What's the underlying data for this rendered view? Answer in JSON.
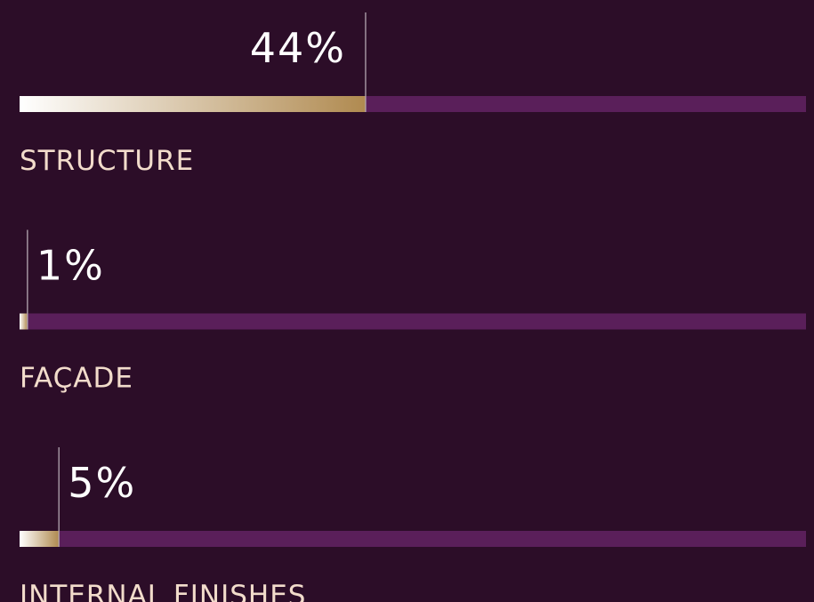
{
  "chart_data": {
    "type": "progress",
    "categories": [
      "STRUCTURE",
      "FAÇADE",
      "INTERNAL FINISHES"
    ],
    "values": [
      44,
      1,
      5
    ],
    "value_labels": [
      "44%",
      "1%",
      "5%"
    ],
    "xlim": [
      0,
      100
    ],
    "color": "#b08a50",
    "track_color": "#5a1f5a"
  }
}
